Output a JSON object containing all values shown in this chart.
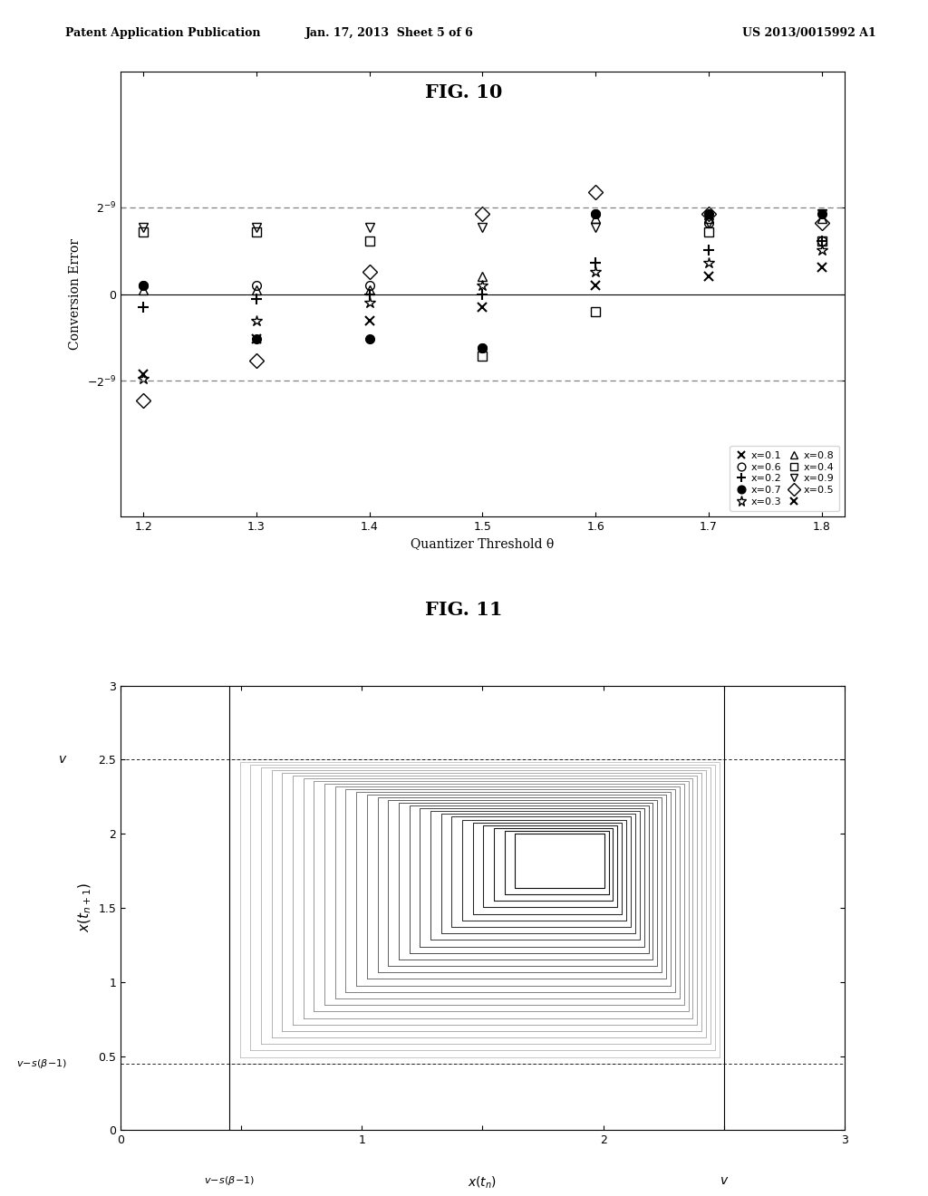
{
  "header_left": "Patent Application Publication",
  "header_center": "Jan. 17, 2013  Sheet 5 of 6",
  "header_right": "US 2013/0015992 A1",
  "fig10_title": "FIG. 10",
  "fig11_title": "FIG. 11",
  "fig10": {
    "xlabel": "Quantizer Threshold θ",
    "ylabel": "Conversion Error",
    "xlim": [
      1.18,
      1.82
    ],
    "xticks": [
      1.2,
      1.3,
      1.4,
      1.5,
      1.6,
      1.7,
      1.8
    ],
    "theta_vals": [
      1.2,
      1.3,
      1.4,
      1.5,
      1.6,
      1.7,
      1.8
    ],
    "ylim": [
      -0.005,
      0.005
    ],
    "dashed_upper": 0.001953125,
    "dashed_lower": -0.001953125,
    "series": [
      {
        "label": "x=0.1",
        "marker": "x",
        "ms": 7,
        "mew": 1.5,
        "filled": false,
        "data": [
          -0.0018,
          -0.001,
          -0.0006,
          -0.0003,
          0.0002,
          0.0004,
          0.0006
        ]
      },
      {
        "label": "x=0.2",
        "marker": "+",
        "ms": 8,
        "mew": 1.5,
        "filled": false,
        "data": [
          -0.0003,
          -0.0001,
          0.0,
          0.0,
          0.0007,
          0.001,
          0.0012
        ]
      },
      {
        "label": "x=0.3",
        "marker": "*",
        "ms": 9,
        "mew": 1.0,
        "filled": false,
        "data": [
          -0.0019,
          -0.0006,
          -0.0002,
          0.0002,
          0.0005,
          0.0007,
          0.001
        ]
      },
      {
        "label": "x=0.4",
        "marker": "s",
        "ms": 7,
        "mew": 1.0,
        "filled": false,
        "data": [
          0.0014,
          0.0014,
          0.0012,
          -0.0014,
          -0.0004,
          0.0014,
          0.0012
        ]
      },
      {
        "label": "x=0.5",
        "marker": "D",
        "ms": 8,
        "mew": 1.0,
        "filled": false,
        "data": [
          -0.0024,
          -0.0015,
          0.0005,
          0.0018,
          0.0023,
          0.0018,
          0.0016
        ]
      },
      {
        "label": "x=0.6",
        "marker": "o",
        "ms": 7,
        "mew": 1.0,
        "filled": false,
        "data": [
          0.0002,
          0.0002,
          0.0002,
          -0.0012,
          0.0018,
          0.0016,
          0.0012
        ]
      },
      {
        "label": "x=0.7",
        "marker": "o",
        "ms": 7,
        "mew": 1.0,
        "filled": true,
        "data": [
          0.0002,
          -0.001,
          -0.001,
          -0.0012,
          0.0018,
          0.0018,
          0.0018
        ]
      },
      {
        "label": "x=0.8",
        "marker": "^",
        "ms": 7,
        "mew": 1.0,
        "filled": false,
        "data": [
          0.0001,
          0.0001,
          0.0001,
          0.0004,
          0.0017,
          0.0017,
          0.0017
        ]
      },
      {
        "label": "x=0.9",
        "marker": "v",
        "ms": 7,
        "mew": 1.0,
        "filled": false,
        "data": [
          0.0015,
          0.0015,
          0.0015,
          0.0015,
          0.0015,
          0.0016,
          0.0018
        ]
      }
    ]
  },
  "fig11": {
    "v": 2.5,
    "vsb": 0.45,
    "xlim": [
      0,
      3
    ],
    "ylim": [
      0,
      3
    ],
    "xticks": [
      0,
      0.5,
      1,
      1.5,
      2,
      2.5,
      3
    ],
    "yticks": [
      0,
      0.5,
      1,
      1.5,
      2,
      2.5,
      3
    ],
    "n_spirals": 28
  }
}
